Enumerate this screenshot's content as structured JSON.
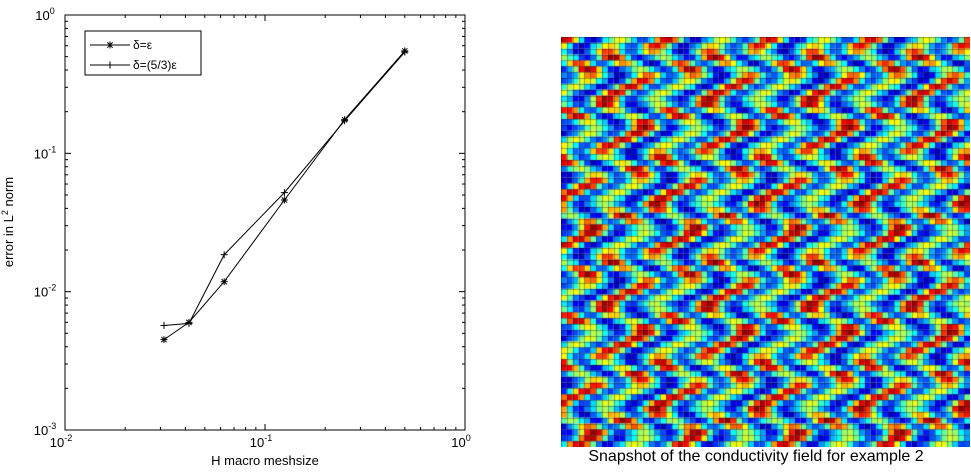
{
  "chart_data": [
    {
      "type": "line",
      "xscale": "log",
      "yscale": "log",
      "xlim": [
        0.01,
        1
      ],
      "ylim": [
        0.001,
        1
      ],
      "xlabel": "H macro meshsize",
      "ylabel": "error in L",
      "ylabel_sup": "2",
      "ylabel_tail": " norm",
      "xticks": [
        {
          "value": 0.01,
          "base": "10",
          "exp": "-2"
        },
        {
          "value": 0.1,
          "base": "10",
          "exp": "-1"
        },
        {
          "value": 1,
          "base": "10",
          "exp": "0"
        }
      ],
      "yticks": [
        {
          "value": 0.001,
          "base": "10",
          "exp": "-3"
        },
        {
          "value": 0.01,
          "base": "10",
          "exp": "-2"
        },
        {
          "value": 0.1,
          "base": "10",
          "exp": "-1"
        },
        {
          "value": 1,
          "base": "10",
          "exp": "0"
        }
      ],
      "legend_position": "top-left",
      "grid": false,
      "line_color": "#000000",
      "series": [
        {
          "name": "δ=ε",
          "marker": "asterisk",
          "x": [
            0.03125,
            0.041667,
            0.0625,
            0.125,
            0.25,
            0.5
          ],
          "y": [
            0.0045,
            0.006,
            0.0118,
            0.046,
            0.175,
            0.55
          ]
        },
        {
          "name": "δ=(5/3)ε",
          "marker": "plus",
          "x": [
            0.03125,
            0.041667,
            0.0625,
            0.125,
            0.25,
            0.5
          ],
          "y": [
            0.0057,
            0.0059,
            0.0185,
            0.052,
            0.172,
            0.54
          ]
        }
      ]
    },
    {
      "type": "heatmap",
      "grid_size": [
        70,
        70
      ],
      "colormap": "jet",
      "caption": "Snapshot of the conductivity field for example 2"
    }
  ]
}
